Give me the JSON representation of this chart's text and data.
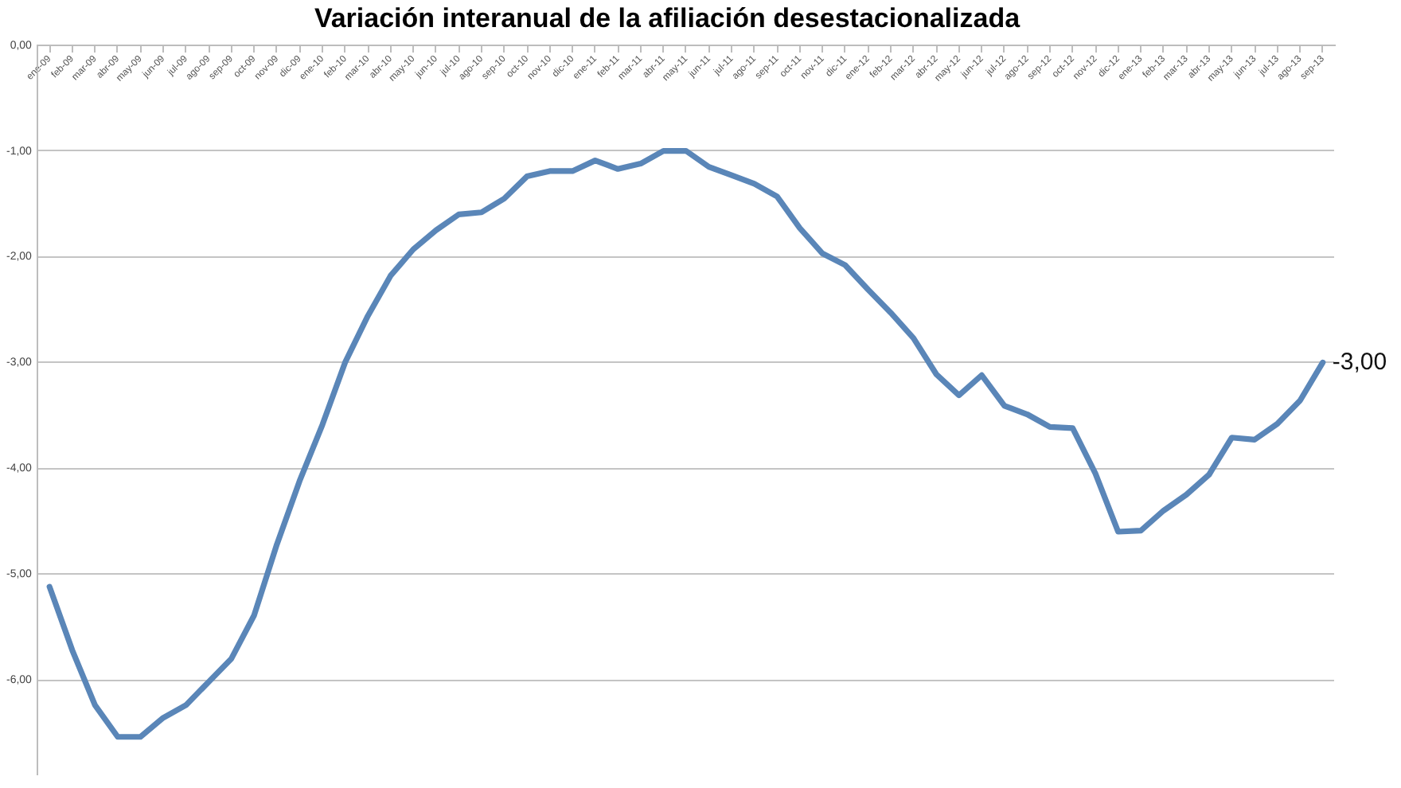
{
  "chart_data": {
    "type": "line",
    "title": "Variación interanual de la afiliación desestacionalizada",
    "categories": [
      "ene-09",
      "feb-09",
      "mar-09",
      "abr-09",
      "may-09",
      "jun-09",
      "jul-09",
      "ago-09",
      "sep-09",
      "oct-09",
      "nov-09",
      "dic-09",
      "ene-10",
      "feb-10",
      "mar-10",
      "abr-10",
      "may-10",
      "jun-10",
      "jul-10",
      "ago-10",
      "sep-10",
      "oct-10",
      "nov-10",
      "dic-10",
      "ene-11",
      "feb-11",
      "mar-11",
      "abr-11",
      "may-11",
      "jun-11",
      "jul-11",
      "ago-11",
      "sep-11",
      "oct-11",
      "nov-11",
      "dic-11",
      "ene-12",
      "feb-12",
      "mar-12",
      "abr-12",
      "may-12",
      "jun-12",
      "jul-12",
      "ago-12",
      "sep-12",
      "oct-12",
      "nov-12",
      "dic-12",
      "ene-13",
      "feb-13",
      "mar-13",
      "abr-13",
      "may-13",
      "jun-13",
      "jul-13",
      "ago-13",
      "sep-13"
    ],
    "series": [
      {
        "color": "#5a86b8",
        "values": [
          -5.12,
          -5.72,
          -6.24,
          -6.54,
          -6.54,
          -6.36,
          -6.24,
          -6.02,
          -5.8,
          -5.39,
          -4.72,
          -4.12,
          -3.59,
          -3.0,
          -2.56,
          -2.18,
          -1.93,
          -1.75,
          -1.6,
          -1.58,
          -1.45,
          -1.24,
          -1.19,
          -1.19,
          -1.09,
          -1.17,
          -1.12,
          -1.0,
          -1.0,
          -1.15,
          -1.23,
          -1.31,
          -1.43,
          -1.73,
          -1.97,
          -2.08,
          -2.31,
          -2.53,
          -2.77,
          -3.11,
          -3.31,
          -3.12,
          -3.41,
          -3.49,
          -3.61,
          -3.62,
          -4.05,
          -4.6,
          -4.59,
          -4.4,
          -4.25,
          -4.06,
          -3.71,
          -3.73,
          -3.58,
          -3.36,
          -3.0
        ],
        "value_labels": [
          null,
          null,
          null,
          null,
          null,
          null,
          null,
          null,
          null,
          null,
          null,
          null,
          null,
          null,
          null,
          null,
          null,
          null,
          null,
          null,
          null,
          null,
          null,
          null,
          null,
          null,
          null,
          null,
          null,
          null,
          null,
          null,
          null,
          null,
          null,
          null,
          null,
          null,
          null,
          null,
          null,
          null,
          null,
          null,
          null,
          null,
          null,
          null,
          null,
          null,
          null,
          null,
          null,
          null,
          null,
          null,
          "-3,00"
        ]
      }
    ],
    "ylim": [
      -6.9,
      0
    ],
    "yticks": [
      {
        "value": 0,
        "label": "0,00"
      },
      {
        "value": -1,
        "label": "-1,00"
      },
      {
        "value": -2,
        "label": "-2,00"
      },
      {
        "value": -3,
        "label": "-3,00"
      },
      {
        "value": -4,
        "label": "-4,00"
      },
      {
        "value": -5,
        "label": "-5,00"
      },
      {
        "value": -6,
        "label": "-6,00"
      }
    ],
    "grid": "y",
    "legend": false,
    "marker": "none"
  }
}
